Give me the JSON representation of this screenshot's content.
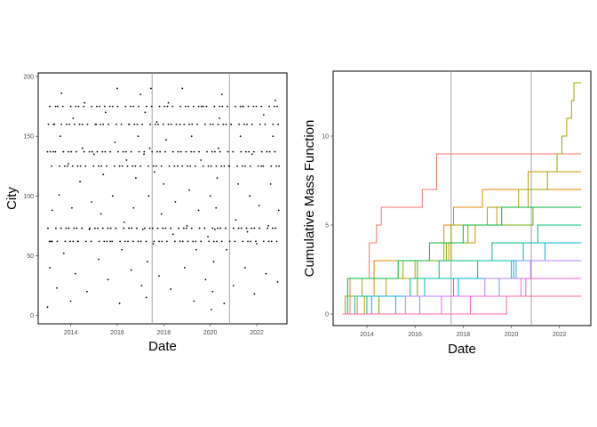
{
  "colors": {
    "point": "#000000",
    "panel_border": "#000000",
    "vline": "#a6a6a6",
    "tick_text": "#4d4d4d",
    "step_palette": [
      "#F8766D",
      "#E58700",
      "#C99800",
      "#A3A500",
      "#6BB100",
      "#00BA38",
      "#00BF7D",
      "#00C0AF",
      "#00BCD8",
      "#00B0F6",
      "#619CFF",
      "#B983FF",
      "#E76BF3",
      "#FD61D1",
      "#FF67A4"
    ]
  },
  "chart_data": [
    {
      "type": "scatter",
      "xlabel": "Date",
      "ylabel": "City",
      "x_ticks": [
        "2014",
        "2016",
        "2018",
        "2020",
        "2022"
      ],
      "x_tick_values": [
        2014,
        2016,
        2018,
        2020,
        2022
      ],
      "y_ticks": [
        "0",
        "50",
        "100",
        "150",
        "200"
      ],
      "y_tick_values": [
        0,
        50,
        100,
        150,
        200
      ],
      "xlim": [
        2012.6,
        2023.3
      ],
      "ylim": [
        -7,
        203
      ],
      "vertical_lines": [
        2017.5,
        2020.83
      ],
      "grid": false,
      "points_note": "",
      "points": [
        [
          2013.0,
          7
        ],
        [
          2013.1,
          40
        ],
        [
          2013.15,
          62
        ],
        [
          2013.2,
          88
        ],
        [
          2013.25,
          137
        ],
        [
          2013.3,
          160
        ],
        [
          2013.35,
          175
        ],
        [
          2013.4,
          23
        ],
        [
          2013.5,
          101
        ],
        [
          2013.55,
          150
        ],
        [
          2013.6,
          186
        ],
        [
          2013.7,
          52
        ],
        [
          2013.8,
          73
        ],
        [
          2013.9,
          127
        ],
        [
          2014.0,
          12
        ],
        [
          2014.05,
          90
        ],
        [
          2014.1,
          165
        ],
        [
          2014.2,
          35
        ],
        [
          2014.3,
          62
        ],
        [
          2014.4,
          112
        ],
        [
          2014.5,
          140
        ],
        [
          2014.6,
          178
        ],
        [
          2014.7,
          20
        ],
        [
          2014.8,
          72
        ],
        [
          2014.9,
          95
        ],
        [
          2015.0,
          135
        ],
        [
          2015.1,
          160
        ],
        [
          2015.2,
          47
        ],
        [
          2015.3,
          85
        ],
        [
          2015.4,
          118
        ],
        [
          2015.5,
          170
        ],
        [
          2015.6,
          30
        ],
        [
          2015.7,
          62
        ],
        [
          2015.8,
          100
        ],
        [
          2015.9,
          145
        ],
        [
          2016.0,
          190
        ],
        [
          2016.1,
          10
        ],
        [
          2016.2,
          55
        ],
        [
          2016.3,
          78
        ],
        [
          2016.4,
          130
        ],
        [
          2016.5,
          160
        ],
        [
          2016.6,
          38
        ],
        [
          2016.7,
          90
        ],
        [
          2016.8,
          115
        ],
        [
          2016.9,
          150
        ],
        [
          2017.0,
          185
        ],
        [
          2017.05,
          25
        ],
        [
          2017.1,
          72
        ],
        [
          2017.15,
          135
        ],
        [
          2017.2,
          170
        ],
        [
          2017.25,
          15
        ],
        [
          2017.3,
          45
        ],
        [
          2017.35,
          100
        ],
        [
          2017.4,
          140
        ],
        [
          2017.45,
          190
        ],
        [
          2017.55,
          60
        ],
        [
          2017.6,
          120
        ],
        [
          2017.7,
          162
        ],
        [
          2017.8,
          33
        ],
        [
          2017.9,
          85
        ],
        [
          2018.0,
          110
        ],
        [
          2018.1,
          147
        ],
        [
          2018.2,
          178
        ],
        [
          2018.3,
          22
        ],
        [
          2018.4,
          68
        ],
        [
          2018.5,
          95
        ],
        [
          2018.6,
          125
        ],
        [
          2018.7,
          160
        ],
        [
          2018.8,
          190
        ],
        [
          2018.9,
          40
        ],
        [
          2019.0,
          75
        ],
        [
          2019.1,
          105
        ],
        [
          2019.2,
          150
        ],
        [
          2019.3,
          12
        ],
        [
          2019.4,
          55
        ],
        [
          2019.5,
          88
        ],
        [
          2019.6,
          130
        ],
        [
          2019.7,
          175
        ],
        [
          2019.8,
          30
        ],
        [
          2019.9,
          66
        ],
        [
          2020.0,
          100
        ],
        [
          2020.05,
          5
        ],
        [
          2020.1,
          20
        ],
        [
          2020.15,
          45
        ],
        [
          2020.2,
          72
        ],
        [
          2020.25,
          90
        ],
        [
          2020.3,
          115
        ],
        [
          2020.35,
          140
        ],
        [
          2020.4,
          165
        ],
        [
          2020.5,
          185
        ],
        [
          2020.6,
          10
        ],
        [
          2020.7,
          55
        ],
        [
          2020.8,
          125
        ],
        [
          2020.9,
          160
        ],
        [
          2021.0,
          25
        ],
        [
          2021.1,
          80
        ],
        [
          2021.2,
          110
        ],
        [
          2021.3,
          150
        ],
        [
          2021.4,
          175
        ],
        [
          2021.5,
          40
        ],
        [
          2021.6,
          70
        ],
        [
          2021.7,
          100
        ],
        [
          2021.8,
          135
        ],
        [
          2021.9,
          18
        ],
        [
          2022.0,
          60
        ],
        [
          2022.1,
          92
        ],
        [
          2022.2,
          125
        ],
        [
          2022.3,
          168
        ],
        [
          2022.4,
          35
        ],
        [
          2022.5,
          75
        ],
        [
          2022.6,
          110
        ],
        [
          2022.7,
          150
        ],
        [
          2022.8,
          180
        ],
        [
          2022.9,
          28
        ],
        [
          2022.95,
          88
        ]
      ],
      "dense_rows": [
        137,
        125,
        73,
        62,
        160,
        175
      ],
      "dense_row_spans": [
        [
          2013.0,
          2023.0
        ]
      ]
    },
    {
      "type": "line",
      "xlabel": "Date",
      "ylabel": "Cumulative Mass Function",
      "x_ticks": [
        "2014",
        "2016",
        "2018",
        "2020",
        "2022"
      ],
      "x_tick_values": [
        2014,
        2016,
        2018,
        2020,
        2022
      ],
      "y_ticks": [
        "0",
        "5",
        "10"
      ],
      "y_tick_values": [
        0,
        5,
        10
      ],
      "xlim": [
        2012.6,
        2023.3
      ],
      "ylim": [
        -0.65,
        13.65
      ],
      "vertical_lines": [
        2017.5,
        2020.83
      ],
      "grid": false,
      "series": [
        {
          "steps": [
            [
              2013.0,
              0
            ],
            [
              2013.3,
              2
            ],
            [
              2014.1,
              4
            ],
            [
              2014.4,
              5
            ],
            [
              2014.6,
              6
            ],
            [
              2016.3,
              7
            ],
            [
              2016.9,
              9
            ],
            [
              2022.9,
              9
            ]
          ]
        },
        {
          "steps": [
            [
              2013.0,
              0
            ],
            [
              2013.6,
              1
            ],
            [
              2014.3,
              3
            ],
            [
              2015.0,
              3
            ],
            [
              2017.2,
              5
            ],
            [
              2017.6,
              6
            ],
            [
              2018.8,
              7
            ],
            [
              2022.9,
              7
            ]
          ]
        },
        {
          "steps": [
            [
              2013.0,
              0
            ],
            [
              2013.9,
              1
            ],
            [
              2014.8,
              2
            ],
            [
              2016.0,
              3
            ],
            [
              2017.4,
              4
            ],
            [
              2018.5,
              5
            ],
            [
              2019.4,
              6
            ],
            [
              2020.7,
              8
            ],
            [
              2022.9,
              8
            ]
          ]
        },
        {
          "steps": [
            [
              2013.0,
              0
            ],
            [
              2013.1,
              1
            ],
            [
              2013.8,
              2
            ],
            [
              2015.5,
              3
            ],
            [
              2017.5,
              5
            ],
            [
              2019.0,
              6
            ],
            [
              2020.3,
              7
            ],
            [
              2021.5,
              8
            ],
            [
              2021.9,
              9
            ],
            [
              2022.1,
              10
            ],
            [
              2022.3,
              11
            ],
            [
              2022.5,
              12
            ],
            [
              2022.6,
              13
            ],
            [
              2022.9,
              13
            ]
          ]
        },
        {
          "steps": [
            [
              2013.0,
              0
            ],
            [
              2014.5,
              1
            ],
            [
              2016.1,
              3
            ],
            [
              2017.3,
              4
            ],
            [
              2018.2,
              5
            ],
            [
              2020.9,
              6
            ],
            [
              2022.9,
              6
            ]
          ]
        },
        {
          "steps": [
            [
              2013.0,
              0
            ],
            [
              2013.2,
              2
            ],
            [
              2015.3,
              3
            ],
            [
              2016.6,
              4
            ],
            [
              2018.0,
              5
            ],
            [
              2019.6,
              6
            ],
            [
              2022.9,
              6
            ]
          ]
        },
        {
          "steps": [
            [
              2013.0,
              0
            ],
            [
              2014.0,
              1
            ],
            [
              2015.8,
              2
            ],
            [
              2017.0,
              3
            ],
            [
              2019.2,
              4
            ],
            [
              2021.1,
              5
            ],
            [
              2022.9,
              5
            ]
          ]
        },
        {
          "steps": [
            [
              2013.0,
              0
            ],
            [
              2013.5,
              1
            ],
            [
              2016.4,
              2
            ],
            [
              2018.6,
              3
            ],
            [
              2020.5,
              4
            ],
            [
              2022.9,
              4
            ]
          ]
        },
        {
          "steps": [
            [
              2013.0,
              0
            ],
            [
              2015.2,
              1
            ],
            [
              2017.8,
              2
            ],
            [
              2020.0,
              3
            ],
            [
              2021.4,
              4
            ],
            [
              2022.9,
              4
            ]
          ]
        },
        {
          "steps": [
            [
              2013.0,
              0
            ],
            [
              2014.2,
              1
            ],
            [
              2017.6,
              2
            ],
            [
              2020.1,
              3
            ],
            [
              2022.9,
              3
            ]
          ]
        },
        {
          "steps": [
            [
              2013.0,
              0
            ],
            [
              2016.2,
              1
            ],
            [
              2019.5,
              2
            ],
            [
              2020.2,
              3
            ],
            [
              2022.9,
              3
            ]
          ]
        },
        {
          "steps": [
            [
              2013.0,
              0
            ],
            [
              2015.6,
              1
            ],
            [
              2018.9,
              2
            ],
            [
              2020.8,
              3
            ],
            [
              2022.9,
              3
            ]
          ]
        },
        {
          "steps": [
            [
              2013.0,
              0
            ],
            [
              2017.1,
              1
            ],
            [
              2020.4,
              2
            ],
            [
              2022.9,
              2
            ]
          ]
        },
        {
          "steps": [
            [
              2013.0,
              0
            ],
            [
              2018.3,
              1
            ],
            [
              2020.6,
              2
            ],
            [
              2022.9,
              2
            ]
          ]
        },
        {
          "steps": [
            [
              2013.0,
              0
            ],
            [
              2019.8,
              1
            ],
            [
              2022.9,
              1
            ]
          ]
        }
      ]
    }
  ]
}
